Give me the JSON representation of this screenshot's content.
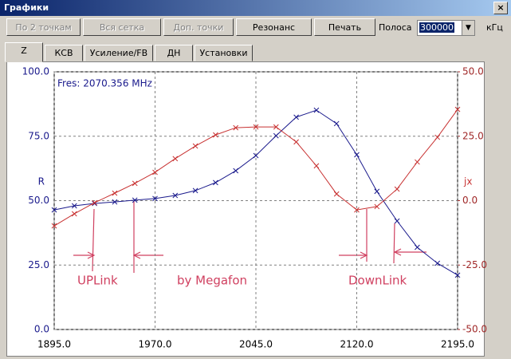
{
  "window": {
    "title": "Графики",
    "close": "×"
  },
  "toolbar": {
    "buttons": [
      {
        "label": "По 2 точкам",
        "enabled": false
      },
      {
        "label": "Вся сетка",
        "enabled": false
      },
      {
        "label": "Доп. точки",
        "enabled": false
      },
      {
        "label": "Резонанс",
        "enabled": true
      },
      {
        "label": "Печать",
        "enabled": true
      }
    ],
    "band_label": "Полоса",
    "band_value": "300000",
    "band_unit": "кГц"
  },
  "tabs": {
    "items": [
      "Z",
      "КСВ",
      "Усиление/FB",
      "ДН",
      "Установки"
    ],
    "active": 0
  },
  "chart_data": {
    "type": "line",
    "x": [
      1895,
      1910,
      1925,
      1940,
      1955,
      1970,
      1985,
      2000,
      2015,
      2030,
      2045,
      2060,
      2075,
      2090,
      2105,
      2120,
      2135,
      2150,
      2165,
      2180,
      2195
    ],
    "series": [
      {
        "name": "R",
        "color": "#1a1a8c",
        "axis": "y",
        "values": [
          46.4,
          48.0,
          48.9,
          49.5,
          50.2,
          50.8,
          52.0,
          53.9,
          57.0,
          61.6,
          67.5,
          75.2,
          82.4,
          85.1,
          79.9,
          67.8,
          53.6,
          42.1,
          31.9,
          25.7,
          21.1
        ]
      },
      {
        "name": "jx",
        "color": "#c83232",
        "axis": "y2",
        "values": [
          -9.8,
          -5.1,
          -0.8,
          2.9,
          6.7,
          11.0,
          16.3,
          21.2,
          25.5,
          28.3,
          28.6,
          28.6,
          22.8,
          13.5,
          2.6,
          -3.6,
          -2.3,
          4.5,
          15.0,
          24.6,
          35.4
        ]
      }
    ],
    "xlim": [
      1895,
      2195
    ],
    "xticks": [
      {
        "value": 1895,
        "label": "1895.0"
      },
      {
        "value": 1970,
        "label": "1970.0"
      },
      {
        "value": 2045,
        "label": "2045.0"
      },
      {
        "value": 2120,
        "label": "2120.0"
      },
      {
        "value": 2195,
        "label": "2195.0"
      }
    ],
    "ylim": [
      0,
      100
    ],
    "yticks": [
      {
        "value": 0,
        "label": "0.0"
      },
      {
        "value": 25,
        "label": "25.0"
      },
      {
        "value": 50,
        "label": "50.0"
      },
      {
        "value": 75,
        "label": "75.0"
      },
      {
        "value": 100,
        "label": "100.0"
      }
    ],
    "y2lim": [
      -50,
      50
    ],
    "y2ticks": [
      {
        "value": -50,
        "label": "-50.0"
      },
      {
        "value": -25,
        "label": "-25.0"
      },
      {
        "value": 0,
        "label": "0.0"
      },
      {
        "value": 25,
        "label": "25.0"
      },
      {
        "value": 50,
        "label": "50.0"
      }
    ],
    "grid": true,
    "annotations": [
      "Fres: 2070.356 MHz",
      "UPLink",
      "by Megafon",
      "DownLink"
    ]
  }
}
